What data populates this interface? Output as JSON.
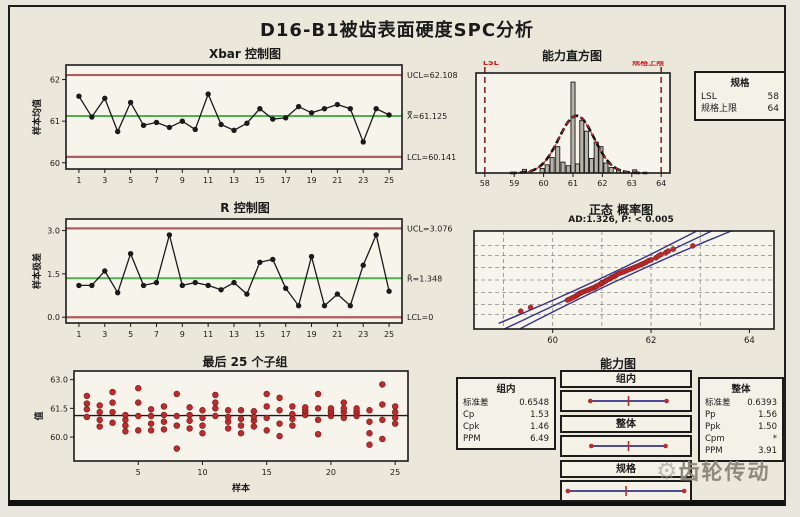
{
  "title": "D16-B1被齿表面硬度SPC分析",
  "watermark": {
    "icon": "gear-icon",
    "text": "齿轮传动"
  },
  "colors": {
    "page_bg": "#e9e6dd",
    "frame_bg": "#ebe7da",
    "plot_bg": "#f7f4ec",
    "ink": "#1a1a1a",
    "limit_line": "#b05c5c",
    "center_line": "#4fae4f",
    "point_red": "#c02a2a",
    "blue_line": "#34348c",
    "bar_fill": "#b7b3a6",
    "spec_line": "#8f2f2f",
    "red_label": "#cc2222",
    "grid": "#8a8a8a",
    "watermark": "#8e897c"
  },
  "spec_box": {
    "header": "规格",
    "rows": [
      {
        "label": "LSL",
        "value": "58"
      },
      {
        "label": "规格上限",
        "value": "64"
      }
    ]
  },
  "capability": {
    "title": "能力图",
    "within_box": {
      "header": "组内",
      "rows": [
        {
          "label": "标准差",
          "value": "0.6548"
        },
        {
          "label": "Cp",
          "value": "1.53"
        },
        {
          "label": "Cpk",
          "value": "1.46"
        },
        {
          "label": "PPM",
          "value": "6.49"
        }
      ]
    },
    "overall_box": {
      "header": "整体",
      "rows": [
        {
          "label": "标准差",
          "value": "0.6393"
        },
        {
          "label": "Pp",
          "value": "1.56"
        },
        {
          "label": "Ppk",
          "value": "1.50"
        },
        {
          "label": "Cpm",
          "value": "*"
        },
        {
          "label": "PPM",
          "value": "3.91"
        }
      ]
    },
    "scale": [
      57.7,
      64.3
    ],
    "bands": [
      {
        "label": "组内",
        "lo": 59.16,
        "hi": 63.09,
        "mid": 61.13
      },
      {
        "label": "整体",
        "lo": 59.21,
        "hi": 63.04,
        "mid": 61.13
      },
      {
        "label": "规格",
        "lo": 58,
        "hi": 64,
        "mid": 61
      }
    ]
  },
  "chart_data": {
    "xbar": {
      "type": "line",
      "title": "Xbar 控制图",
      "ylabel": "样本均值",
      "ucl": 62.108,
      "center": 61.125,
      "lcl": 60.141,
      "labels": {
        "ucl": "UCL=62.108",
        "center": "X̿=61.125",
        "lcl": "LCL=60.141"
      },
      "ylim": [
        59.85,
        62.35
      ],
      "yticks": [
        {
          "v": 60,
          "t": "60"
        },
        {
          "v": 61,
          "t": "61"
        },
        {
          "v": 62,
          "t": "62"
        }
      ],
      "xticks": [
        1,
        3,
        5,
        7,
        9,
        11,
        13,
        15,
        17,
        19,
        21,
        23,
        25
      ],
      "values": [
        61.6,
        61.1,
        61.55,
        60.75,
        61.45,
        60.9,
        60.97,
        60.85,
        61.0,
        60.8,
        61.65,
        60.92,
        60.78,
        60.95,
        61.3,
        61.05,
        61.08,
        61.35,
        61.2,
        61.3,
        61.4,
        61.3,
        60.5,
        61.3,
        61.15
      ]
    },
    "r": {
      "type": "line",
      "title": "R 控制图",
      "ylabel": "样本极差",
      "ucl": 3.076,
      "center": 1.348,
      "lcl": 0,
      "labels": {
        "ucl": "UCL=3.076",
        "center": "R̄=1.348",
        "lcl": "LCL=0"
      },
      "ylim": [
        -0.2,
        3.4
      ],
      "yticks": [
        {
          "v": 0,
          "t": "0.0"
        },
        {
          "v": 1.5,
          "t": "1.5"
        },
        {
          "v": 3.0,
          "t": "3.0"
        }
      ],
      "xticks": [
        1,
        3,
        5,
        7,
        9,
        11,
        13,
        15,
        17,
        19,
        21,
        23,
        25
      ],
      "values": [
        1.1,
        1.1,
        1.6,
        0.85,
        2.2,
        1.1,
        1.2,
        2.85,
        1.1,
        1.2,
        1.1,
        0.95,
        1.2,
        0.8,
        1.9,
        2.0,
        1.0,
        0.4,
        2.1,
        0.4,
        0.8,
        0.4,
        1.8,
        2.85,
        0.9
      ]
    },
    "last25": {
      "type": "scatter",
      "title": "最后 25 个子组",
      "xlabel": "样本",
      "ylabel": "值",
      "mean": 61.125,
      "ylim": [
        58.75,
        63.45
      ],
      "yticks": [
        {
          "v": 60.0,
          "t": "60.0"
        },
        {
          "v": 61.5,
          "t": "61.5"
        },
        {
          "v": 63.0,
          "t": "63.0"
        }
      ],
      "xticks": [
        5,
        10,
        15,
        20,
        25
      ],
      "subgroups": [
        [
          61.05,
          61.45,
          61.75,
          62.15
        ],
        [
          60.55,
          60.9,
          61.3,
          61.65
        ],
        [
          60.75,
          61.3,
          61.8,
          62.35
        ],
        [
          60.3,
          60.6,
          60.9,
          61.15
        ],
        [
          60.35,
          61.1,
          61.8,
          62.55
        ],
        [
          60.35,
          60.7,
          61.1,
          61.45
        ],
        [
          60.4,
          60.8,
          61.15,
          61.6
        ],
        [
          59.4,
          60.6,
          61.1,
          62.25
        ],
        [
          60.45,
          60.85,
          61.15,
          61.55
        ],
        [
          60.2,
          60.6,
          61.0,
          61.4
        ],
        [
          61.1,
          61.5,
          61.8,
          62.2
        ],
        [
          60.45,
          60.8,
          61.05,
          61.4
        ],
        [
          60.2,
          60.6,
          60.95,
          61.4
        ],
        [
          60.55,
          60.85,
          61.05,
          61.35
        ],
        [
          60.35,
          61.0,
          61.6,
          62.25
        ],
        [
          60.05,
          60.7,
          61.4,
          62.05
        ],
        [
          60.6,
          60.95,
          61.2,
          61.6
        ],
        [
          61.15,
          61.3,
          61.4,
          61.55
        ],
        [
          60.15,
          60.9,
          61.5,
          62.25
        ],
        [
          61.1,
          61.25,
          61.35,
          61.5
        ],
        [
          61.0,
          61.3,
          61.5,
          61.8
        ],
        [
          61.1,
          61.25,
          61.35,
          61.5
        ],
        [
          59.6,
          60.2,
          60.8,
          61.4
        ],
        [
          59.9,
          60.9,
          61.7,
          62.75
        ],
        [
          60.7,
          61.0,
          61.3,
          61.6
        ]
      ]
    },
    "histogram": {
      "type": "bar",
      "title": "能力直方图",
      "lsl": 58,
      "usl": 64,
      "lsl_label": "LSL",
      "usl_label": "规格上限",
      "xlim": [
        57.7,
        64.3
      ],
      "xticks": [
        58,
        59,
        60,
        61,
        62,
        63,
        64
      ],
      "ymax": 11,
      "bin_width": 0.14,
      "bins": [
        [
          59.35,
          0.4
        ],
        [
          59.95,
          0.5
        ],
        [
          60.12,
          0.9
        ],
        [
          60.29,
          1.7
        ],
        [
          60.48,
          2.9
        ],
        [
          60.66,
          1.2
        ],
        [
          60.84,
          0.8
        ],
        [
          61.0,
          10
        ],
        [
          61.15,
          1.0
        ],
        [
          61.3,
          5.8
        ],
        [
          61.46,
          4.6
        ],
        [
          61.63,
          1.6
        ],
        [
          61.79,
          3.4
        ],
        [
          61.95,
          2.9
        ],
        [
          62.12,
          1.1
        ],
        [
          62.3,
          0.6
        ],
        [
          62.55,
          0.4
        ],
        [
          63.1,
          0.35
        ]
      ],
      "curve": {
        "mean": 61.12,
        "sd": 0.6,
        "peak": 6.3
      }
    },
    "probability": {
      "type": "scatter",
      "title": "正态 概率图",
      "subtitle": "AD:1.326, P: < 0.005",
      "xlim": [
        58.4,
        64.5
      ],
      "xticks": [
        60,
        62,
        64
      ],
      "zlim": [
        -3.3,
        3.3
      ],
      "fit": {
        "mean": 61.125,
        "sd": 0.6393
      },
      "grid_z": [
        -2.33,
        -1.64,
        -0.84,
        0,
        0.84,
        1.64,
        2.33
      ],
      "grid_x": [
        59,
        60,
        61,
        62,
        63
      ],
      "band_dz": 0.45,
      "points": [
        [
          59.35,
          -2.1
        ],
        [
          59.55,
          -1.85
        ],
        [
          60.3,
          -1.35
        ],
        [
          60.35,
          -1.28
        ],
        [
          60.4,
          -1.2
        ],
        [
          60.45,
          -1.12
        ],
        [
          60.5,
          -1.02
        ],
        [
          60.52,
          -0.96
        ],
        [
          60.55,
          -0.9
        ],
        [
          60.58,
          -0.86
        ],
        [
          60.6,
          -0.82
        ],
        [
          60.65,
          -0.76
        ],
        [
          60.7,
          -0.7
        ],
        [
          60.75,
          -0.63
        ],
        [
          60.8,
          -0.56
        ],
        [
          60.85,
          -0.5
        ],
        [
          60.88,
          -0.44
        ],
        [
          60.9,
          -0.4
        ],
        [
          60.95,
          -0.32
        ],
        [
          61.0,
          -0.24
        ],
        [
          61.0,
          -0.18
        ],
        [
          61.05,
          -0.12
        ],
        [
          61.08,
          -0.06
        ],
        [
          61.1,
          0.0
        ],
        [
          61.15,
          0.06
        ],
        [
          61.18,
          0.12
        ],
        [
          61.2,
          0.18
        ],
        [
          61.25,
          0.24
        ],
        [
          61.28,
          0.3
        ],
        [
          61.3,
          0.36
        ],
        [
          61.35,
          0.44
        ],
        [
          61.4,
          0.5
        ],
        [
          61.45,
          0.56
        ],
        [
          61.5,
          0.63
        ],
        [
          61.55,
          0.7
        ],
        [
          61.6,
          0.76
        ],
        [
          61.65,
          0.83
        ],
        [
          61.7,
          0.9
        ],
        [
          61.75,
          0.97
        ],
        [
          61.8,
          1.05
        ],
        [
          61.85,
          1.12
        ],
        [
          61.9,
          1.2
        ],
        [
          61.95,
          1.3
        ],
        [
          62.0,
          1.36
        ],
        [
          62.1,
          1.5
        ],
        [
          62.15,
          1.62
        ],
        [
          62.2,
          1.72
        ],
        [
          62.3,
          1.85
        ],
        [
          62.35,
          1.95
        ],
        [
          62.45,
          2.08
        ],
        [
          62.85,
          2.3
        ]
      ]
    }
  }
}
